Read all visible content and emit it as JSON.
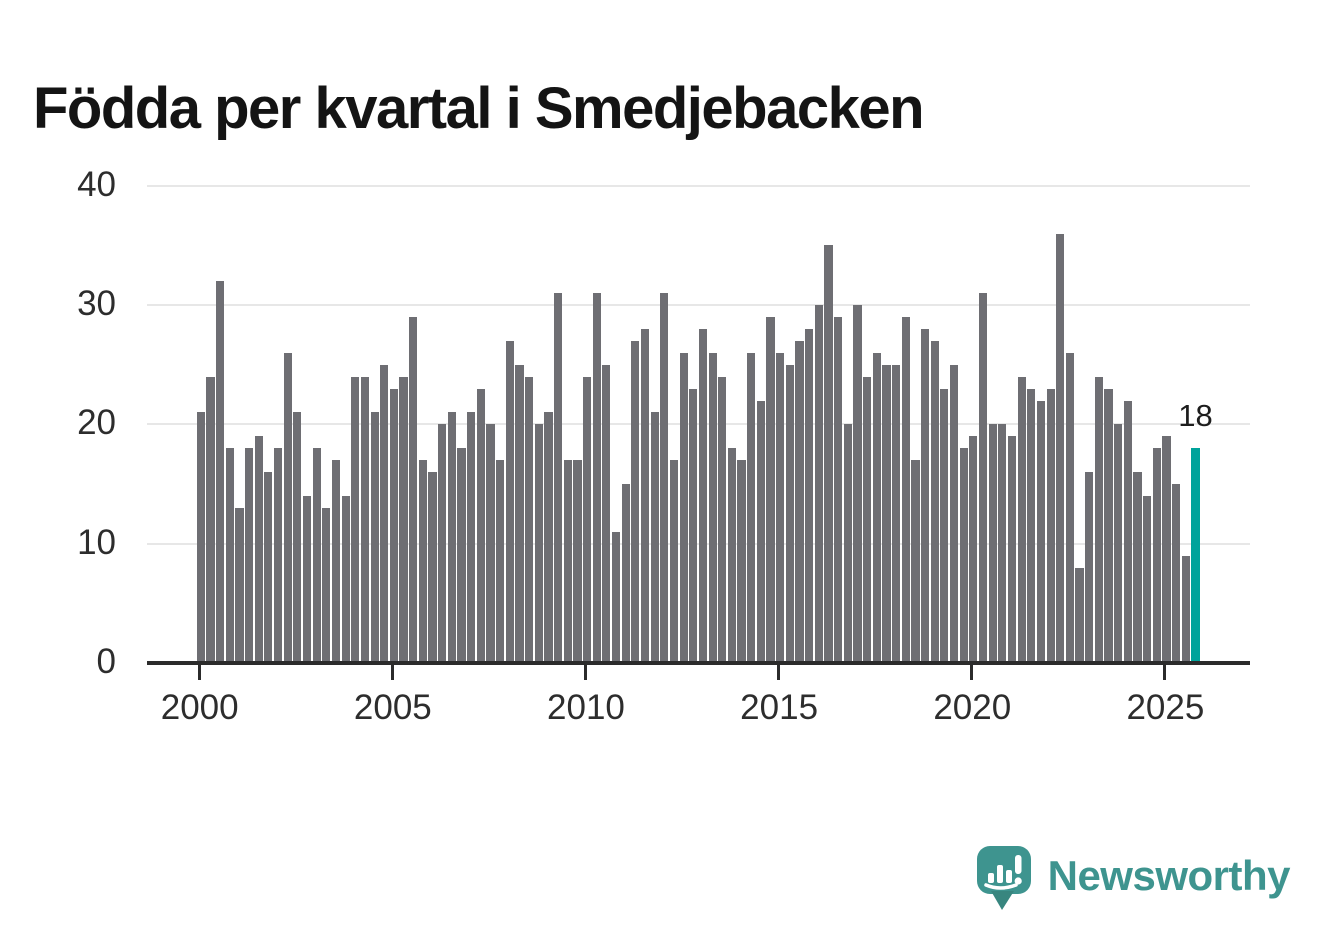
{
  "header": {
    "title": "Födda per kvartal i Smedjebacken"
  },
  "chart_data": {
    "type": "bar",
    "title": "Födda per kvartal i Smedjebacken",
    "period": "quarterly",
    "start_year": 2000,
    "categories_note": "104 consecutive quarters from 2000Q1 to 2025Q4",
    "values": [
      21,
      24,
      32,
      18,
      13,
      18,
      19,
      16,
      18,
      26,
      21,
      14,
      18,
      13,
      17,
      14,
      24,
      24,
      21,
      25,
      23,
      24,
      29,
      17,
      16,
      20,
      21,
      18,
      21,
      23,
      20,
      17,
      27,
      25,
      24,
      20,
      21,
      31,
      17,
      17,
      24,
      31,
      25,
      11,
      15,
      27,
      28,
      21,
      31,
      17,
      26,
      23,
      28,
      26,
      24,
      18,
      17,
      26,
      22,
      29,
      26,
      25,
      27,
      28,
      30,
      35,
      29,
      20,
      30,
      24,
      26,
      25,
      25,
      29,
      17,
      28,
      27,
      23,
      25,
      18,
      19,
      31,
      20,
      20,
      19,
      24,
      23,
      22,
      23,
      36,
      26,
      8,
      16,
      24,
      23,
      20,
      22,
      16,
      14,
      18,
      19,
      15,
      9,
      18
    ],
    "highlight_index": 103,
    "highlight_label": "18",
    "ylim": [
      0,
      40
    ],
    "yticks": [
      "0",
      "10",
      "20",
      "30",
      "40"
    ],
    "xticks": [
      "2000",
      "2005",
      "2010",
      "2015",
      "2020",
      "2025"
    ],
    "grid": true,
    "legend": "none",
    "bar_color": "#6e6e73",
    "highlight_color": "#00a39b",
    "grid_color": "#e7e7e7",
    "axis_color": "#2b2b2b",
    "label_color": "#2d2d2d"
  },
  "footer": {
    "brand": "Newsworthy",
    "brand_color": "#3e948f",
    "logo_icon": "newsworthy-speech-bubble-chart-icon"
  }
}
